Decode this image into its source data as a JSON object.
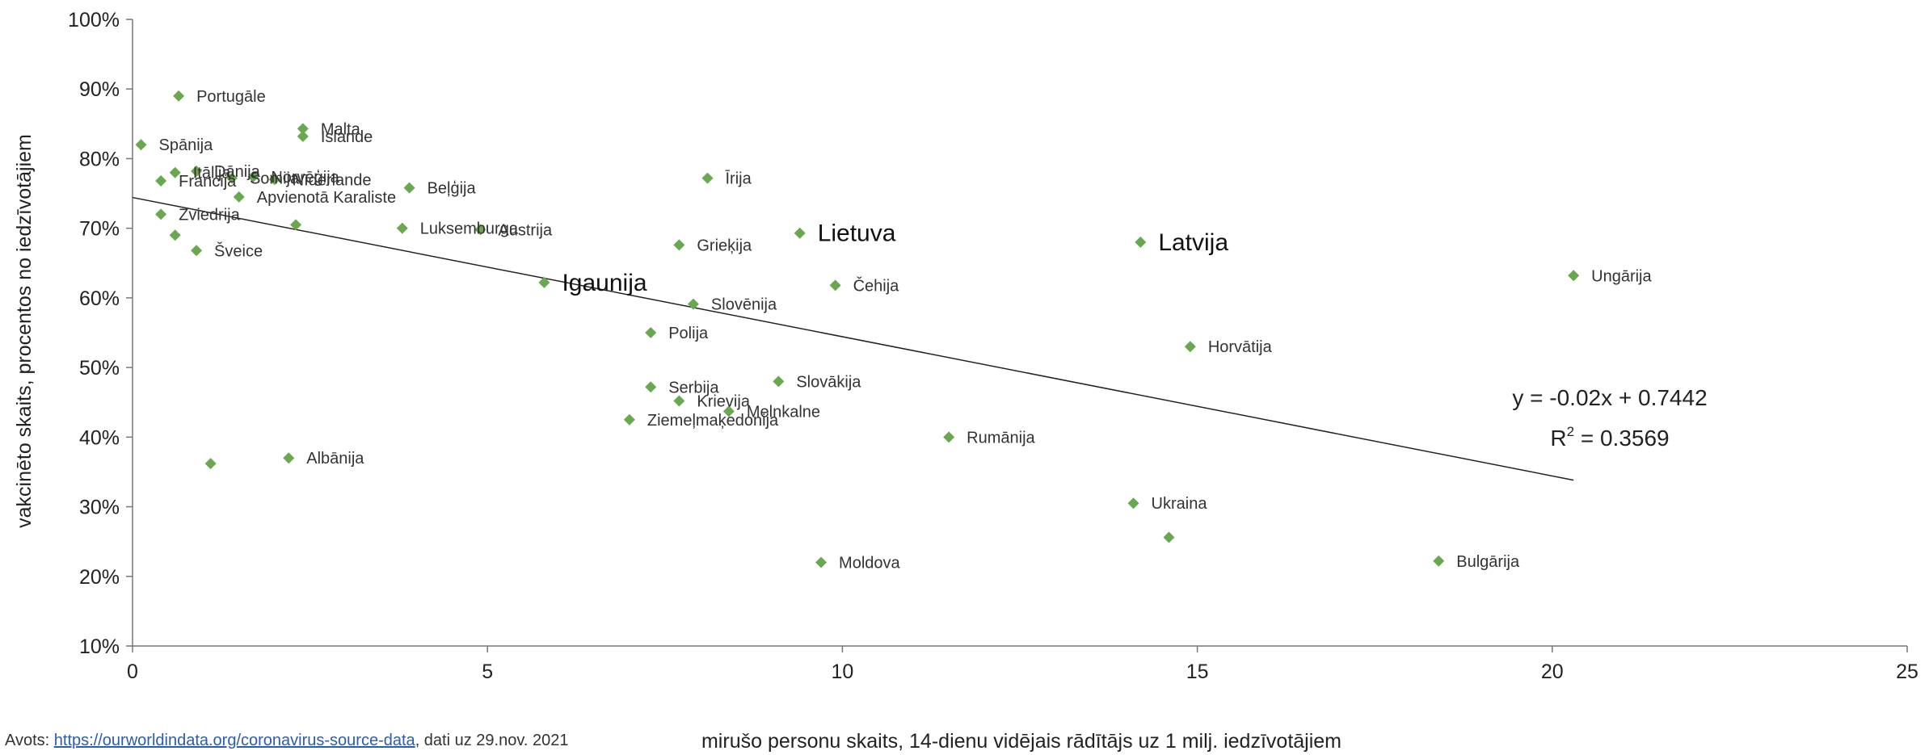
{
  "chart_data": {
    "type": "scatter",
    "xlabel": "mirušo personu skaits, 14-dienu vidējais rādītājs uz 1 milj. iedzīvotājiem",
    "ylabel": "vakcinēto skaits, procentos no iedzīvotājiem",
    "xlim": [
      0,
      25
    ],
    "ylim": [
      0.1,
      1.0
    ],
    "x_ticks": [
      "0",
      "5",
      "10",
      "15",
      "20",
      "25"
    ],
    "y_ticks": [
      "10%",
      "20%",
      "30%",
      "40%",
      "50%",
      "60%",
      "70%",
      "80%",
      "90%",
      "100%"
    ],
    "grid": false,
    "marker_color": "#6aa84f",
    "trendline": {
      "slope": -0.02,
      "intercept": 0.7442,
      "x_range": [
        0,
        20.3
      ],
      "equation": "y = -0.02x + 0.7442",
      "r2_prefix": "R",
      "r2_exp": "2",
      "r2_value": " = 0.3569"
    },
    "points": [
      {
        "label": "Portugāle",
        "x": 0.65,
        "y": 0.89
      },
      {
        "label": "Spānija",
        "x": 0.12,
        "y": 0.82
      },
      {
        "label": "Malta",
        "x": 2.4,
        "y": 0.843
      },
      {
        "label": "Islande",
        "x": 2.4,
        "y": 0.832
      },
      {
        "label": "Itālija",
        "x": 0.6,
        "y": 0.78
      },
      {
        "label": "Dānija",
        "x": 0.9,
        "y": 0.782
      },
      {
        "label": "Francija",
        "x": 0.4,
        "y": 0.768
      },
      {
        "label": "Somija",
        "x": 1.4,
        "y": 0.772
      },
      {
        "label": "Norvēģija",
        "x": 1.7,
        "y": 0.774
      },
      {
        "label": "Nīderlande",
        "x": 2.0,
        "y": 0.77
      },
      {
        "label": "Apvienotā Karaliste",
        "x": 1.5,
        "y": 0.745
      },
      {
        "label": "Beļģija",
        "x": 3.9,
        "y": 0.758
      },
      {
        "label": "Īrija",
        "x": 8.1,
        "y": 0.772
      },
      {
        "label": "Zviedrija",
        "x": 0.4,
        "y": 0.72
      },
      {
        "label": "",
        "x": 0.6,
        "y": 0.69
      },
      {
        "label": "",
        "x": 2.3,
        "y": 0.705
      },
      {
        "label": "Šveice",
        "x": 0.9,
        "y": 0.668
      },
      {
        "label": "Luksemburga",
        "x": 3.8,
        "y": 0.7
      },
      {
        "label": "Austrija",
        "x": 4.9,
        "y": 0.698
      },
      {
        "label": "Grieķija",
        "x": 7.7,
        "y": 0.676
      },
      {
        "label": "Lietuva",
        "x": 9.4,
        "y": 0.693,
        "highlight": true
      },
      {
        "label": "Latvija",
        "x": 14.2,
        "y": 0.68,
        "highlight": true
      },
      {
        "label": "Igaunija",
        "x": 5.8,
        "y": 0.622,
        "highlight": true
      },
      {
        "label": "Čehija",
        "x": 9.9,
        "y": 0.618
      },
      {
        "label": "Slovēnija",
        "x": 7.9,
        "y": 0.591
      },
      {
        "label": "Ungārija",
        "x": 20.3,
        "y": 0.632
      },
      {
        "label": "Polija",
        "x": 7.3,
        "y": 0.55
      },
      {
        "label": "Horvātija",
        "x": 14.9,
        "y": 0.53
      },
      {
        "label": "Serbija",
        "x": 7.3,
        "y": 0.472
      },
      {
        "label": "Slovākija",
        "x": 9.1,
        "y": 0.48
      },
      {
        "label": "Krievija",
        "x": 7.7,
        "y": 0.452
      },
      {
        "label": "Melnkalne",
        "x": 8.4,
        "y": 0.437
      },
      {
        "label": "Ziemeļmaķedonija",
        "x": 7.0,
        "y": 0.425
      },
      {
        "label": "Rumānija",
        "x": 11.5,
        "y": 0.4
      },
      {
        "label": "",
        "x": 1.1,
        "y": 0.362
      },
      {
        "label": "Albānija",
        "x": 2.2,
        "y": 0.37
      },
      {
        "label": "Ukraina",
        "x": 14.1,
        "y": 0.305
      },
      {
        "label": "",
        "x": 14.6,
        "y": 0.256
      },
      {
        "label": "Moldova",
        "x": 9.7,
        "y": 0.22
      },
      {
        "label": "Bulgārija",
        "x": 18.4,
        "y": 0.222
      }
    ]
  },
  "source": {
    "prefix": "Avots: ",
    "link_text": "https://ourworldindata.org/coronavirus-source-data",
    "suffix": ", dati uz 29.nov. 2021"
  }
}
